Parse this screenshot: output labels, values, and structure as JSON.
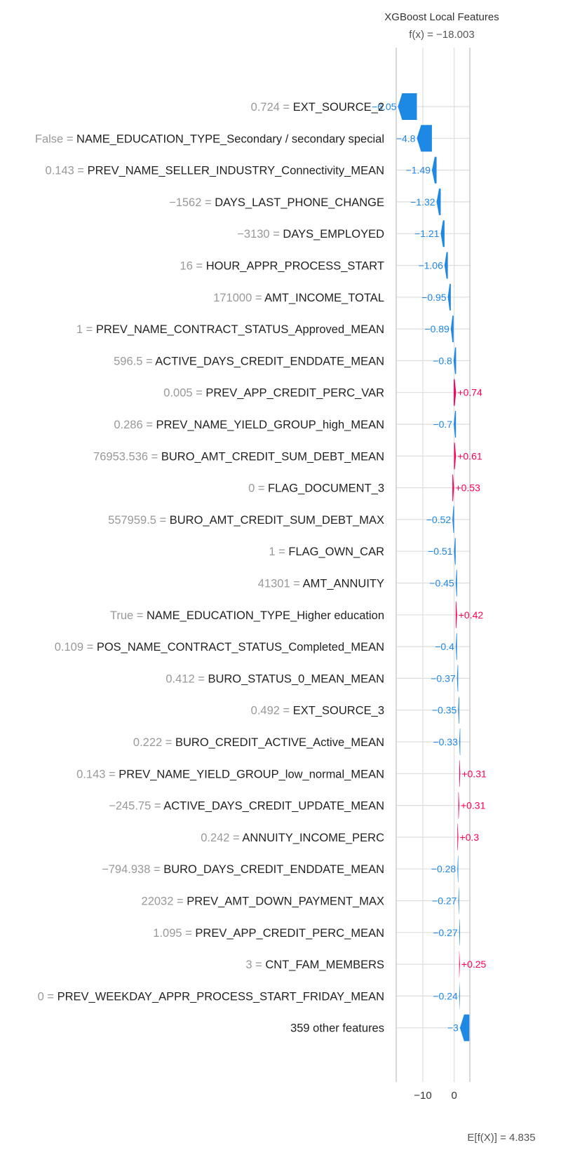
{
  "chart_data": {
    "type": "bar",
    "title": "XGBoost Local Features",
    "fx_label": "f(x) = −18.003",
    "fx": -18.003,
    "base_label": "E[f(X)] = 4.835",
    "base_value": 4.835,
    "xlim": [
      -18.5,
      5
    ],
    "xticks": [
      -10,
      0
    ],
    "xtick_labels": [
      "−10",
      "0"
    ],
    "colors": {
      "negative": "#1e88e5",
      "positive": "#ff0051",
      "grid": "#dddddd",
      "axis": "#cccccc"
    },
    "features": [
      {
        "value": "0.724",
        "name": "EXT_SOURCE_2",
        "shap": -6.05,
        "label": "−6.05"
      },
      {
        "value": "False",
        "name": "NAME_EDUCATION_TYPE_Secondary / secondary special",
        "shap": -4.8,
        "label": "−4.8"
      },
      {
        "value": "0.143",
        "name": "PREV_NAME_SELLER_INDUSTRY_Connectivity_MEAN",
        "shap": -1.49,
        "label": "−1.49"
      },
      {
        "value": "−1562",
        "name": "DAYS_LAST_PHONE_CHANGE",
        "shap": -1.32,
        "label": "−1.32"
      },
      {
        "value": "−3130",
        "name": "DAYS_EMPLOYED",
        "shap": -1.21,
        "label": "−1.21"
      },
      {
        "value": "16",
        "name": "HOUR_APPR_PROCESS_START",
        "shap": -1.06,
        "label": "−1.06"
      },
      {
        "value": "171000",
        "name": "AMT_INCOME_TOTAL",
        "shap": -0.95,
        "label": "−0.95"
      },
      {
        "value": "1",
        "name": "PREV_NAME_CONTRACT_STATUS_Approved_MEAN",
        "shap": -0.89,
        "label": "−0.89"
      },
      {
        "value": "596.5",
        "name": "ACTIVE_DAYS_CREDIT_ENDDATE_MEAN",
        "shap": -0.8,
        "label": "−0.8"
      },
      {
        "value": "0.005",
        "name": "PREV_APP_CREDIT_PERC_VAR",
        "shap": 0.74,
        "label": "+0.74"
      },
      {
        "value": "0.286",
        "name": "PREV_NAME_YIELD_GROUP_high_MEAN",
        "shap": -0.7,
        "label": "−0.7"
      },
      {
        "value": "76953.536",
        "name": "BURO_AMT_CREDIT_SUM_DEBT_MEAN",
        "shap": 0.61,
        "label": "+0.61"
      },
      {
        "value": "0",
        "name": "FLAG_DOCUMENT_3",
        "shap": 0.53,
        "label": "+0.53"
      },
      {
        "value": "557959.5",
        "name": "BURO_AMT_CREDIT_SUM_DEBT_MAX",
        "shap": -0.52,
        "label": "−0.52"
      },
      {
        "value": "1",
        "name": "FLAG_OWN_CAR",
        "shap": -0.51,
        "label": "−0.51"
      },
      {
        "value": "41301",
        "name": "AMT_ANNUITY",
        "shap": -0.45,
        "label": "−0.45"
      },
      {
        "value": "True",
        "name": "NAME_EDUCATION_TYPE_Higher education",
        "shap": 0.42,
        "label": "+0.42"
      },
      {
        "value": "0.109",
        "name": "POS_NAME_CONTRACT_STATUS_Completed_MEAN",
        "shap": -0.4,
        "label": "−0.4"
      },
      {
        "value": "0.412",
        "name": "BURO_STATUS_0_MEAN_MEAN",
        "shap": -0.37,
        "label": "−0.37"
      },
      {
        "value": "0.492",
        "name": "EXT_SOURCE_3",
        "shap": -0.35,
        "label": "−0.35"
      },
      {
        "value": "0.222",
        "name": "BURO_CREDIT_ACTIVE_Active_MEAN",
        "shap": -0.33,
        "label": "−0.33"
      },
      {
        "value": "0.143",
        "name": "PREV_NAME_YIELD_GROUP_low_normal_MEAN",
        "shap": 0.31,
        "label": "+0.31"
      },
      {
        "value": "−245.75",
        "name": "ACTIVE_DAYS_CREDIT_UPDATE_MEAN",
        "shap": 0.31,
        "label": "+0.31"
      },
      {
        "value": "0.242",
        "name": "ANNUITY_INCOME_PERC",
        "shap": 0.3,
        "label": "+0.3"
      },
      {
        "value": "−794.938",
        "name": "BURO_DAYS_CREDIT_ENDDATE_MEAN",
        "shap": -0.28,
        "label": "−0.28"
      },
      {
        "value": "22032",
        "name": "PREV_AMT_DOWN_PAYMENT_MAX",
        "shap": -0.27,
        "label": "−0.27"
      },
      {
        "value": "1.095",
        "name": "PREV_APP_CREDIT_PERC_MEAN",
        "shap": -0.27,
        "label": "−0.27"
      },
      {
        "value": "3",
        "name": "CNT_FAM_MEMBERS",
        "shap": 0.25,
        "label": "+0.25"
      },
      {
        "value": "0",
        "name": "PREV_WEEKDAY_APPR_PROCESS_START_FRIDAY_MEAN",
        "shap": -0.24,
        "label": "−0.24"
      },
      {
        "value": "",
        "name": "359 other features",
        "shap": -3.0,
        "label": "−3"
      }
    ]
  }
}
